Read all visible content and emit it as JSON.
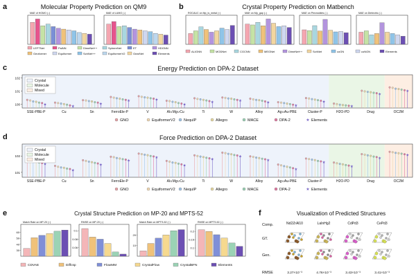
{
  "panel_letters": {
    "a": "a",
    "b": "b",
    "c": "c",
    "d": "d",
    "e": "e",
    "f": "f"
  },
  "palette": [
    "#f4a6b0",
    "#e7548d",
    "#c5e3a5",
    "#a9d7e0",
    "#7b8fd6",
    "#b394de",
    "#f0c27a",
    "#6c4fb3",
    "#8fc4e8",
    "#bcd7ee",
    "#f2d6a0",
    "#5d6fc0"
  ],
  "chart_data": [
    {
      "id": "qm9",
      "type": "bar",
      "title": "Molecular Property Prediction on QM9",
      "subplots": [
        {
          "label": "MAE of HOMO (↓)",
          "values": [
            26,
            30,
            22,
            24,
            21,
            19,
            18,
            17,
            16,
            14,
            13,
            12
          ],
          "ylim": [
            0,
            32
          ]
        },
        {
          "label": "MAE of LUMO (↓)",
          "values": [
            24,
            27,
            21,
            22,
            20,
            18,
            17,
            16,
            15,
            13,
            12,
            11
          ],
          "ylim": [
            0,
            32
          ]
        }
      ],
      "legend": [
        "LEFTNet",
        "PaiNN",
        "DimeNet++",
        "SphereNet",
        "ET",
        "HDGNN",
        "Geoformer",
        "Equiformer",
        "SchNet++",
        "EquiformerV2",
        "GearNet",
        "Elements"
      ]
    },
    {
      "id": "matbench",
      "type": "bar",
      "title": "Crystal Property Prediction on Matbench",
      "subplots": [
        {
          "label": "ROCAUC on Mp_is_metal (↑)",
          "values": [
            0.88,
            0.9,
            0.93,
            0.91,
            0.89,
            0.9,
            0.92,
            0.91,
            0.94
          ],
          "ylim": [
            0.8,
            1.0
          ]
        },
        {
          "label": "MAE on Mp_gap (↓)",
          "values": [
            0.24,
            0.23,
            0.26,
            0.22,
            0.3,
            0.25,
            0.21,
            0.22,
            0.2
          ],
          "ylim": [
            0,
            0.32
          ]
        },
        {
          "label": "MAE on Perovskites (↓)",
          "values": [
            0.035,
            0.033,
            0.045,
            0.032,
            0.06,
            0.034,
            0.03,
            0.031,
            0.028
          ],
          "ylim": [
            0,
            0.065
          ]
        },
        {
          "label": "MAE on Dielectric (↓)",
          "values": [
            0.29,
            0.3,
            0.27,
            0.28,
            0.36,
            0.29,
            0.28,
            0.27,
            0.26
          ],
          "ylim": [
            0.2,
            0.4
          ]
        }
      ],
      "legend": [
        "ALIGNN",
        "MODNet",
        "CGCNN",
        "MEGNet",
        "DimeNet++",
        "SchNet",
        "coGN",
        "coNGN",
        "Elements"
      ]
    },
    {
      "id": "energy",
      "type": "scatter",
      "title": "Energy Prediction on DPA-2 Dataset",
      "categories": [
        "SSE-PBE-P",
        "Cu",
        "Sn",
        "FerroEle-P",
        "V",
        "Al∪Mg∪Cu",
        "Ti",
        "W",
        "Alloy",
        "Ag∪Au-PBE",
        "Cluster-P",
        "H2O-PD",
        "Drug",
        "OC2M"
      ],
      "regions": [
        {
          "name": "Crystal",
          "start": 0,
          "end": 10,
          "color": "#eef3fb"
        },
        {
          "name": "Molecule",
          "start": 11,
          "end": 12,
          "color": "#eaf6e6"
        },
        {
          "name": "Mixed",
          "start": 13,
          "end": 13,
          "color": "#fdeee3"
        }
      ],
      "series": [
        {
          "name": "GNO",
          "color": "#e9a3a8",
          "values": [
            2.1,
            1.3,
            2.0,
            3.5,
            4.0,
            1.8,
            2.8,
            3.2,
            2.6,
            1.4,
            2.9,
            1.1,
            10.5,
            19.0
          ]
        },
        {
          "name": "EquiformerV2",
          "color": "#f2d9b3",
          "values": [
            1.9,
            1.2,
            1.9,
            3.1,
            3.6,
            1.7,
            2.5,
            3.0,
            2.3,
            1.3,
            2.7,
            1.0,
            9.4,
            17.5
          ]
        },
        {
          "name": "NequIP",
          "color": "#9fc4e8",
          "values": [
            1.6,
            1.1,
            1.7,
            2.8,
            3.3,
            1.5,
            2.3,
            2.7,
            2.1,
            1.2,
            2.4,
            0.9,
            8.6,
            15.0
          ]
        },
        {
          "name": "Allegro",
          "color": "#e8d9a0",
          "values": [
            1.5,
            1.0,
            1.6,
            2.6,
            3.1,
            1.4,
            2.1,
            2.6,
            2.0,
            1.1,
            2.2,
            0.85,
            8.1,
            14.2
          ]
        },
        {
          "name": "MACE",
          "color": "#9bd3b5",
          "values": [
            1.3,
            0.9,
            1.4,
            2.3,
            2.8,
            1.2,
            1.9,
            2.3,
            1.8,
            1.0,
            2.0,
            0.8,
            7.3,
            12.8
          ]
        },
        {
          "name": "DPA-2",
          "color": "#e27aa3",
          "values": [
            1.2,
            0.8,
            1.3,
            2.1,
            2.6,
            1.1,
            1.7,
            2.1,
            1.6,
            0.9,
            1.8,
            0.75,
            6.8,
            11.5
          ]
        },
        {
          "name": "Elements",
          "color": "#7a68c8",
          "values": [
            1.0,
            0.7,
            1.1,
            1.9,
            2.3,
            1.0,
            1.5,
            1.9,
            1.4,
            0.8,
            1.6,
            0.7,
            6.1,
            10.4
          ]
        }
      ],
      "yscale": "log",
      "ylim": [
        0.5,
        120
      ],
      "yticks": [
        "10^2",
        "10^1",
        "10^0"
      ]
    },
    {
      "id": "force",
      "type": "scatter",
      "title": "Force Prediction on DPA-2 Dataset",
      "categories": [
        "SSE-PBE-P",
        "Cu",
        "Sn",
        "FerroEle-P",
        "V",
        "Al∪Mg∪Cu",
        "Ti",
        "W",
        "Alloy",
        "Ag∪Au-PBE",
        "Cluster-P",
        "H2O-PD",
        "Drug",
        "OC2M"
      ],
      "regions": [
        {
          "name": "Crystal",
          "start": 0,
          "end": 10,
          "color": "#eef3fb"
        },
        {
          "name": "Molecule",
          "start": 11,
          "end": 12,
          "color": "#eaf6e6"
        },
        {
          "name": "Mixed",
          "start": 13,
          "end": 13,
          "color": "#fdeee3"
        }
      ],
      "series": [
        {
          "name": "GNO",
          "color": "#e9a3a8",
          "values": [
            60,
            25,
            55,
            90,
            140,
            50,
            110,
            160,
            95,
            30,
            70,
            40,
            130,
            180
          ]
        },
        {
          "name": "EquiformerV2",
          "color": "#f2d9b3",
          "values": [
            55,
            22,
            50,
            85,
            130,
            45,
            100,
            150,
            88,
            27,
            65,
            36,
            120,
            170
          ]
        },
        {
          "name": "NequIP",
          "color": "#9fc4e8",
          "values": [
            48,
            20,
            45,
            75,
            120,
            40,
            92,
            135,
            80,
            24,
            60,
            33,
            110,
            155
          ]
        },
        {
          "name": "Allegro",
          "color": "#e8d9a0",
          "values": [
            45,
            19,
            42,
            70,
            112,
            38,
            86,
            128,
            75,
            22,
            56,
            31,
            102,
            148
          ]
        },
        {
          "name": "MACE",
          "color": "#9bd3b5",
          "values": [
            40,
            17,
            38,
            64,
            100,
            34,
            78,
            115,
            68,
            20,
            50,
            28,
            92,
            138
          ]
        },
        {
          "name": "DPA-2",
          "color": "#e27aa3",
          "values": [
            37,
            16,
            35,
            60,
            94,
            31,
            72,
            108,
            63,
            18,
            47,
            26,
            86,
            128
          ]
        },
        {
          "name": "Elements",
          "color": "#7a68c8",
          "values": [
            33,
            14,
            31,
            54,
            86,
            28,
            66,
            98,
            57,
            16,
            42,
            24,
            78,
            118
          ]
        }
      ],
      "yscale": "log",
      "ylim": [
        5,
        400
      ],
      "yticks": [
        "10^2",
        "10^1"
      ]
    },
    {
      "id": "csp",
      "type": "bar",
      "title": "Crystal Structure Prediction on MP-20 and MPTS-52",
      "subplots": [
        {
          "label": "Match Rate on MP-20 (↑)",
          "values": [
            33,
            51,
            55,
            58,
            62,
            64
          ],
          "ylim": [
            20,
            70
          ],
          "yticks": [
            30,
            40,
            50,
            60
          ]
        },
        {
          "label": "RMSE on MP-20 (↓)",
          "values": [
            0.105,
            0.085,
            0.08,
            0.07,
            0.05,
            0.045
          ],
          "ylim": [
            0.04,
            0.11
          ],
          "yticks": [
            0.06,
            0.08,
            0.1
          ]
        },
        {
          "label": "Match Rate on MPTS-52 (↑)",
          "values": [
            5,
            12,
            17,
            20,
            24,
            25
          ],
          "ylim": [
            0,
            28
          ],
          "yticks": [
            10,
            20
          ]
        },
        {
          "label": "RMSE on MPTS-52 (↓)",
          "values": [
            0.21,
            0.2,
            0.18,
            0.16,
            0.13,
            0.11
          ],
          "ylim": [
            0.05,
            0.23
          ],
          "yticks": [
            0.1,
            0.15,
            0.2
          ]
        }
      ],
      "legend": [
        "CDVAE",
        "Diffcsp",
        "FlowMM",
        "CrystalFlow",
        "CrystalBFN",
        "Elements"
      ],
      "colors": [
        "#f4b6b8",
        "#f0c27a",
        "#7f8fd8",
        "#f6d98f",
        "#9bd3b5",
        "#6c4fb3"
      ]
    }
  ],
  "structures": {
    "title": "Visualization of Predicted Structures",
    "row_labels": [
      "Comp.",
      "GT.",
      "Gen.",
      "RMSE"
    ],
    "columns": [
      {
        "comp": "Nd2ZrAl10",
        "rmse": "3.27×10⁻³",
        "atoms": [
          "#8b5a2b",
          "#c9a227",
          "#7fb3d5"
        ]
      },
      {
        "comp": "LaInHg2",
        "rmse": "4.76×10⁻³",
        "atoms": [
          "#c9b458",
          "#d85fa0",
          "#8b8b8b"
        ]
      },
      {
        "comp": "CdPd3",
        "rmse": "3.43×10⁻³",
        "atoms": [
          "#d85fc9",
          "#cfcfcf",
          "#a0a0a0"
        ]
      },
      {
        "comp": "CePd3",
        "rmse": "3.41×10⁻³",
        "atoms": [
          "#d6e055",
          "#cfcfcf",
          "#b0b0b0"
        ]
      }
    ]
  }
}
